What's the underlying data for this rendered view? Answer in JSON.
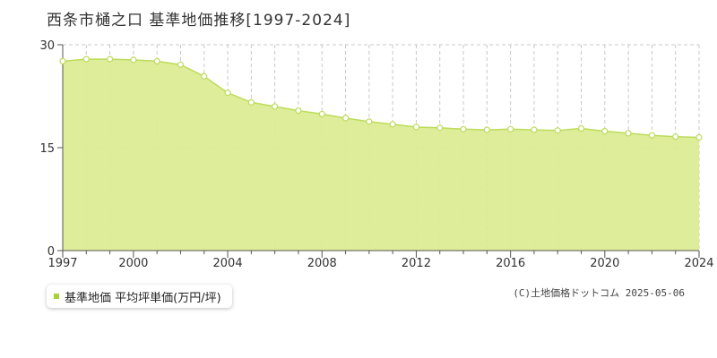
{
  "title": "西条市樋之口 基準地価推移[1997-2024]",
  "legend": {
    "label": "基準地価 平均坪単価(万円/坪)"
  },
  "copyright": "(C)土地価格ドットコム 2025-05-06",
  "colors": {
    "fill": "#dcec94",
    "line": "#bcdc5a",
    "marker_stroke": "#bcdc5a",
    "grid": "#c8c8c8",
    "axis": "#555555",
    "legend_swatch": "#a8d038"
  },
  "chart_data": {
    "type": "area",
    "title": "西条市樋之口 基準地価推移[1997-2024]",
    "xlabel": "",
    "ylabel": "",
    "x": [
      1997,
      1998,
      1999,
      2000,
      2001,
      2002,
      2003,
      2004,
      2005,
      2006,
      2007,
      2008,
      2009,
      2010,
      2011,
      2012,
      2013,
      2014,
      2015,
      2016,
      2017,
      2018,
      2019,
      2020,
      2021,
      2022,
      2023,
      2024
    ],
    "series": [
      {
        "name": "基準地価 平均坪単価(万円/坪)",
        "values": [
          27.6,
          27.9,
          27.9,
          27.8,
          27.6,
          27.1,
          25.4,
          23.0,
          21.6,
          21.0,
          20.4,
          19.9,
          19.3,
          18.8,
          18.4,
          18.0,
          17.9,
          17.7,
          17.6,
          17.7,
          17.6,
          17.5,
          17.8,
          17.4,
          17.1,
          16.8,
          16.6,
          16.5
        ]
      }
    ],
    "xlim": [
      1997,
      2024
    ],
    "ylim": [
      0,
      30
    ],
    "x_ticks": [
      1997,
      2000,
      2004,
      2008,
      2012,
      2016,
      2020,
      2024
    ],
    "y_ticks": [
      0,
      15,
      30
    ],
    "grid": {
      "vertical": "dashed, every year",
      "horizontal": "dashed at 15"
    },
    "legend_position": "bottom-left"
  }
}
